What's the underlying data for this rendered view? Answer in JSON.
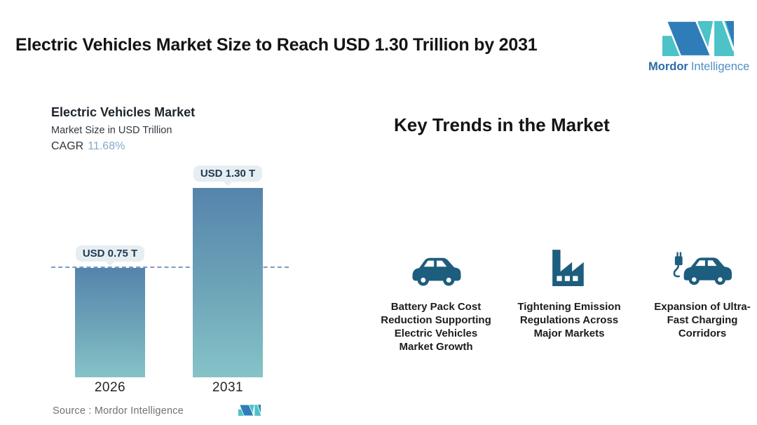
{
  "header": {
    "title": "Electric Vehicles Market Size to Reach USD 1.30 Trillion by 2031",
    "brand": {
      "name_bold": "Mordor",
      "name_light": "Intelligence"
    }
  },
  "chart": {
    "title": "Electric Vehicles Market",
    "subtitle": "Market Size in USD Trillion",
    "cagr_label": "CAGR",
    "cagr_value": "11.68%",
    "source_label": "Source :  Mordor Intelligence"
  },
  "chart_data": {
    "type": "bar",
    "title": "Electric Vehicles Market",
    "ylabel": "Market Size in USD Trillion",
    "categories": [
      "2026",
      "2031"
    ],
    "values": [
      0.75,
      1.3
    ],
    "value_labels": [
      "USD 0.75 T",
      "USD 1.30 T"
    ],
    "units": "USD Trillion",
    "cagr_percent": 11.68,
    "ylim": [
      0,
      1.3
    ],
    "reference_line": 0.75,
    "grid": false,
    "bar_gradient_top": "#5584ac",
    "bar_gradient_bottom": "#85c3c8"
  },
  "trends": {
    "heading": "Key Trends in the Market",
    "items": [
      {
        "icon": "car-icon",
        "label": "Battery Pack Cost\nReduction Supporting\nElectric Vehicles\nMarket Growth"
      },
      {
        "icon": "factory-icon",
        "label": "Tightening Emission\nRegulations Across\nMajor Markets"
      },
      {
        "icon": "ev-charging-car-icon",
        "label": "Expansion of Ultra-\nFast Charging\nCorridors"
      }
    ]
  },
  "colors": {
    "brand_teal": "#4cc3c7",
    "brand_blue": "#2e7db8",
    "brand_text_bold": "#2a6ca8",
    "brand_text_light": "#4f90c5",
    "trend_icon": "#1d5d7e",
    "reference_line": "#7b9cc0",
    "pill_background": "#e7eef2",
    "pill_text": "#1d3950",
    "cagr_value_text": "#85aac8"
  }
}
